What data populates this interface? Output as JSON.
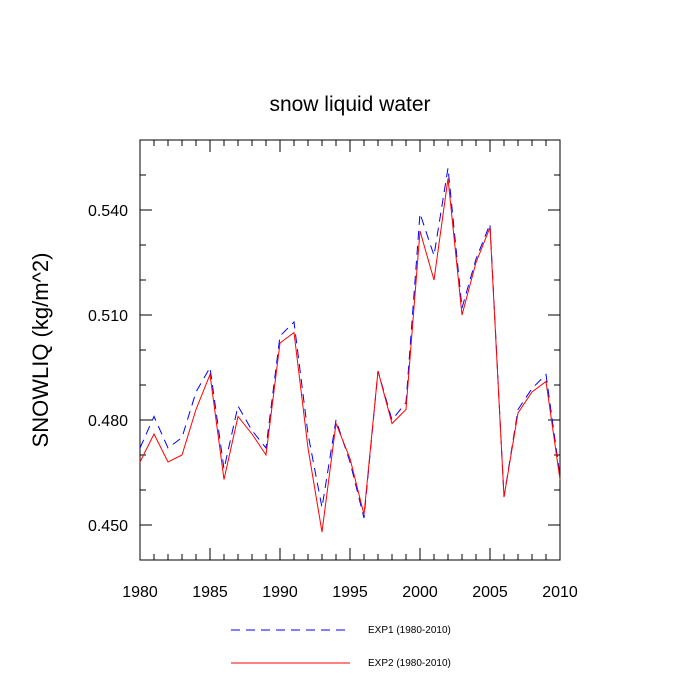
{
  "chart_data": {
    "type": "line",
    "title": "snow liquid water",
    "xlabel": "",
    "ylabel": "SNOWLIQ  (kg/m^2)",
    "xlim": [
      1980,
      2010
    ],
    "ylim": [
      0.44,
      0.56
    ],
    "xticks": [
      1980,
      1985,
      1990,
      1995,
      2000,
      2005,
      2010
    ],
    "xtick_labels": [
      "1980",
      "1985",
      "1990",
      "1995",
      "2000",
      "2005",
      "2010"
    ],
    "yticks": [
      0.45,
      0.48,
      0.51,
      0.54
    ],
    "ytick_labels": [
      "0.450",
      "0.480",
      "0.510",
      "0.540"
    ],
    "x": [
      1980,
      1981,
      1982,
      1983,
      1984,
      1985,
      1986,
      1987,
      1988,
      1989,
      1990,
      1991,
      1992,
      1993,
      1994,
      1995,
      1996,
      1997,
      1998,
      1999,
      2000,
      2001,
      2002,
      2003,
      2004,
      2005,
      2006,
      2007,
      2008,
      2009,
      2010
    ],
    "series": [
      {
        "name": "EXP1 (1980-2010)",
        "color": "#0000ff",
        "style": "dashed",
        "values": [
          0.472,
          0.481,
          0.472,
          0.475,
          0.488,
          0.495,
          0.466,
          0.484,
          0.477,
          0.472,
          0.504,
          0.508,
          0.476,
          0.455,
          0.48,
          0.468,
          0.452,
          0.494,
          0.48,
          0.485,
          0.539,
          0.527,
          0.552,
          0.512,
          0.526,
          0.536,
          0.458,
          0.483,
          0.489,
          0.493,
          0.464
        ]
      },
      {
        "name": "EXP2 (1980-2010)",
        "color": "#ff0000",
        "style": "solid",
        "values": [
          0.468,
          0.476,
          0.468,
          0.47,
          0.483,
          0.493,
          0.463,
          0.481,
          0.476,
          0.47,
          0.502,
          0.505,
          0.472,
          0.448,
          0.479,
          0.469,
          0.453,
          0.494,
          0.479,
          0.483,
          0.534,
          0.52,
          0.549,
          0.51,
          0.525,
          0.535,
          0.458,
          0.482,
          0.488,
          0.491,
          0.463
        ]
      }
    ],
    "legend_position": "bottom-center",
    "grid": false
  }
}
